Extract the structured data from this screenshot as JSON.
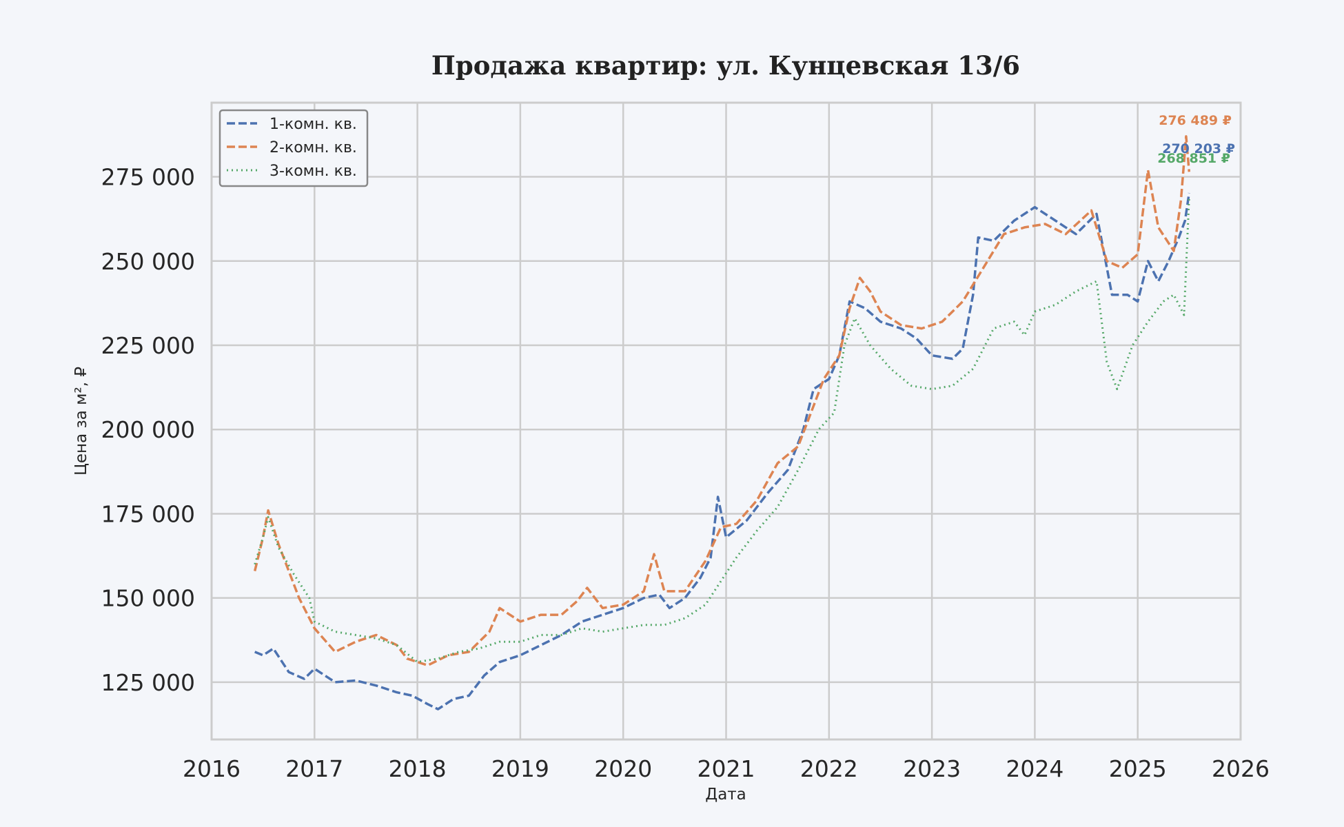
{
  "chart_data": {
    "type": "line",
    "title": "Продажа квартир: ул. Кунцевская 13/6",
    "xlabel": "Дата",
    "ylabel": "Цена за м², ₽",
    "xlim": [
      2016,
      2026
    ],
    "ylim": [
      108000,
      297000
    ],
    "x_ticks": [
      "2016",
      "2017",
      "2018",
      "2019",
      "2020",
      "2021",
      "2022",
      "2023",
      "2024",
      "2025",
      "2026"
    ],
    "y_ticks": [
      "125 000",
      "150 000",
      "175 000",
      "200 000",
      "225 000",
      "250 000",
      "275 000"
    ],
    "grid": true,
    "legend_position": "top-left",
    "series": [
      {
        "name": "1-комн. кв.",
        "color": "#4c72b0",
        "style": "dashed",
        "end_label": "270 203 ₽",
        "points": [
          [
            2016.42,
            134000
          ],
          [
            2016.5,
            133000
          ],
          [
            2016.6,
            135000
          ],
          [
            2016.75,
            128000
          ],
          [
            2016.9,
            126000
          ],
          [
            2017.0,
            129000
          ],
          [
            2017.2,
            125000
          ],
          [
            2017.4,
            125500
          ],
          [
            2017.6,
            124000
          ],
          [
            2017.8,
            122000
          ],
          [
            2017.95,
            121000
          ],
          [
            2018.1,
            118500
          ],
          [
            2018.2,
            117000
          ],
          [
            2018.35,
            120000
          ],
          [
            2018.5,
            121000
          ],
          [
            2018.65,
            127000
          ],
          [
            2018.8,
            131000
          ],
          [
            2019.0,
            133000
          ],
          [
            2019.2,
            136000
          ],
          [
            2019.4,
            139000
          ],
          [
            2019.6,
            143000
          ],
          [
            2019.8,
            145000
          ],
          [
            2020.0,
            147000
          ],
          [
            2020.2,
            150000
          ],
          [
            2020.35,
            151000
          ],
          [
            2020.45,
            147000
          ],
          [
            2020.6,
            150000
          ],
          [
            2020.75,
            156000
          ],
          [
            2020.85,
            162000
          ],
          [
            2020.92,
            180000
          ],
          [
            2021.0,
            168000
          ],
          [
            2021.2,
            173000
          ],
          [
            2021.4,
            181000
          ],
          [
            2021.6,
            188000
          ],
          [
            2021.75,
            200000
          ],
          [
            2021.85,
            212000
          ],
          [
            2022.0,
            215000
          ],
          [
            2022.1,
            222000
          ],
          [
            2022.2,
            238000
          ],
          [
            2022.35,
            236000
          ],
          [
            2022.5,
            232000
          ],
          [
            2022.7,
            230000
          ],
          [
            2022.85,
            227000
          ],
          [
            2023.0,
            222000
          ],
          [
            2023.2,
            221000
          ],
          [
            2023.3,
            224000
          ],
          [
            2023.4,
            240000
          ],
          [
            2023.45,
            257000
          ],
          [
            2023.6,
            256000
          ],
          [
            2023.8,
            262000
          ],
          [
            2024.0,
            266000
          ],
          [
            2024.2,
            262000
          ],
          [
            2024.4,
            258000
          ],
          [
            2024.6,
            264000
          ],
          [
            2024.75,
            240000
          ],
          [
            2024.9,
            240000
          ],
          [
            2025.0,
            238000
          ],
          [
            2025.1,
            250000
          ],
          [
            2025.2,
            244000
          ],
          [
            2025.3,
            250000
          ],
          [
            2025.4,
            257000
          ],
          [
            2025.46,
            262000
          ],
          [
            2025.5,
            270203
          ]
        ]
      },
      {
        "name": "2-комн. кв.",
        "color": "#dd8452",
        "style": "dashed",
        "end_label": "276 489 ₽",
        "points": [
          [
            2016.42,
            158000
          ],
          [
            2016.5,
            168000
          ],
          [
            2016.55,
            176000
          ],
          [
            2016.65,
            166000
          ],
          [
            2016.75,
            158000
          ],
          [
            2016.85,
            150000
          ],
          [
            2017.0,
            141000
          ],
          [
            2017.2,
            134000
          ],
          [
            2017.4,
            137000
          ],
          [
            2017.6,
            139000
          ],
          [
            2017.8,
            136000
          ],
          [
            2017.9,
            132000
          ],
          [
            2018.1,
            130000
          ],
          [
            2018.3,
            133000
          ],
          [
            2018.5,
            134000
          ],
          [
            2018.7,
            140000
          ],
          [
            2018.8,
            147000
          ],
          [
            2019.0,
            143000
          ],
          [
            2019.2,
            145000
          ],
          [
            2019.4,
            145000
          ],
          [
            2019.55,
            149000
          ],
          [
            2019.65,
            153000
          ],
          [
            2019.8,
            147000
          ],
          [
            2020.0,
            148000
          ],
          [
            2020.2,
            152000
          ],
          [
            2020.3,
            163000
          ],
          [
            2020.4,
            152000
          ],
          [
            2020.6,
            152000
          ],
          [
            2020.8,
            161000
          ],
          [
            2020.95,
            171000
          ],
          [
            2021.1,
            172000
          ],
          [
            2021.3,
            179000
          ],
          [
            2021.5,
            190000
          ],
          [
            2021.7,
            195000
          ],
          [
            2021.85,
            207000
          ],
          [
            2021.95,
            215000
          ],
          [
            2022.1,
            222000
          ],
          [
            2022.2,
            236000
          ],
          [
            2022.3,
            245000
          ],
          [
            2022.4,
            241000
          ],
          [
            2022.5,
            235000
          ],
          [
            2022.7,
            231000
          ],
          [
            2022.9,
            230000
          ],
          [
            2023.1,
            232000
          ],
          [
            2023.3,
            238000
          ],
          [
            2023.5,
            248000
          ],
          [
            2023.7,
            258000
          ],
          [
            2023.9,
            260000
          ],
          [
            2024.1,
            261000
          ],
          [
            2024.3,
            258000
          ],
          [
            2024.55,
            265000
          ],
          [
            2024.7,
            250000
          ],
          [
            2024.85,
            248000
          ],
          [
            2025.0,
            252000
          ],
          [
            2025.1,
            277000
          ],
          [
            2025.2,
            260000
          ],
          [
            2025.35,
            253000
          ],
          [
            2025.42,
            268000
          ],
          [
            2025.47,
            287000
          ],
          [
            2025.5,
            276489
          ]
        ]
      },
      {
        "name": "3-комн. кв.",
        "color": "#55a868",
        "style": "dotted",
        "end_label": "268 851 ₽",
        "points": [
          [
            2016.42,
            160000
          ],
          [
            2016.5,
            168000
          ],
          [
            2016.55,
            174000
          ],
          [
            2016.65,
            165000
          ],
          [
            2016.8,
            157000
          ],
          [
            2016.95,
            150000
          ],
          [
            2017.0,
            143000
          ],
          [
            2017.2,
            140000
          ],
          [
            2017.4,
            139000
          ],
          [
            2017.6,
            138000
          ],
          [
            2017.8,
            136000
          ],
          [
            2018.0,
            131000
          ],
          [
            2018.2,
            132000
          ],
          [
            2018.4,
            134000
          ],
          [
            2018.6,
            135000
          ],
          [
            2018.8,
            137000
          ],
          [
            2019.0,
            137000
          ],
          [
            2019.2,
            139000
          ],
          [
            2019.4,
            139000
          ],
          [
            2019.6,
            141000
          ],
          [
            2019.8,
            140000
          ],
          [
            2020.0,
            141000
          ],
          [
            2020.2,
            142000
          ],
          [
            2020.4,
            142000
          ],
          [
            2020.6,
            144000
          ],
          [
            2020.8,
            148000
          ],
          [
            2020.95,
            155000
          ],
          [
            2021.1,
            162000
          ],
          [
            2021.3,
            170000
          ],
          [
            2021.5,
            177000
          ],
          [
            2021.7,
            188000
          ],
          [
            2021.9,
            200000
          ],
          [
            2022.05,
            205000
          ],
          [
            2022.15,
            225000
          ],
          [
            2022.25,
            233000
          ],
          [
            2022.4,
            225000
          ],
          [
            2022.6,
            218000
          ],
          [
            2022.8,
            213000
          ],
          [
            2023.0,
            212000
          ],
          [
            2023.2,
            213000
          ],
          [
            2023.4,
            218000
          ],
          [
            2023.6,
            230000
          ],
          [
            2023.8,
            232000
          ],
          [
            2023.9,
            228000
          ],
          [
            2024.0,
            235000
          ],
          [
            2024.2,
            237000
          ],
          [
            2024.4,
            241000
          ],
          [
            2024.6,
            244000
          ],
          [
            2024.7,
            220000
          ],
          [
            2024.8,
            212000
          ],
          [
            2024.95,
            225000
          ],
          [
            2025.1,
            232000
          ],
          [
            2025.25,
            238000
          ],
          [
            2025.35,
            240000
          ],
          [
            2025.45,
            234000
          ],
          [
            2025.5,
            268851
          ]
        ]
      }
    ]
  }
}
